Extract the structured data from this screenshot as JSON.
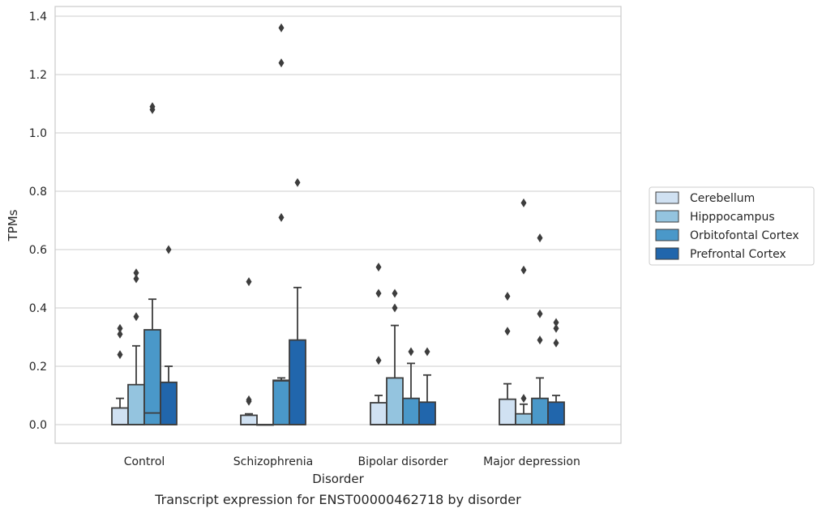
{
  "chart_data": {
    "type": "box",
    "xlabel": "Disorder",
    "ylabel": "TPMs",
    "caption": "Transcript expression for ENST00000462718 by disorder",
    "ylim": [
      -0.065,
      1.43
    ],
    "yticks": [
      0.0,
      0.2,
      0.4,
      0.6,
      0.8,
      1.0,
      1.2,
      1.4
    ],
    "ytick_labels": [
      "0.0",
      "0.2",
      "0.4",
      "0.6",
      "0.8",
      "1.0",
      "1.2",
      "1.4"
    ],
    "grid": "y",
    "legend_placement": "outside-right",
    "categories": [
      "Control",
      "Schizophrenia",
      "Bipolar disorder",
      "Major depression"
    ],
    "series": [
      {
        "name": "Cerebellum",
        "color": "#d0e1f2",
        "boxes": [
          {
            "q1": 0.0,
            "median": 0.0,
            "q3": 0.057,
            "whisker_low": 0.0,
            "whisker_high": 0.09,
            "outliers": [
              0.24,
              0.31,
              0.33
            ]
          },
          {
            "q1": 0.0,
            "median": 0.0,
            "q3": 0.032,
            "whisker_low": 0.0,
            "whisker_high": 0.037,
            "outliers": [
              0.08,
              0.085,
              0.49
            ]
          },
          {
            "q1": 0.0,
            "median": 0.0,
            "q3": 0.075,
            "whisker_low": 0.0,
            "whisker_high": 0.1,
            "outliers": [
              0.22,
              0.45,
              0.54
            ]
          },
          {
            "q1": 0.0,
            "median": 0.0,
            "q3": 0.087,
            "whisker_low": 0.0,
            "whisker_high": 0.14,
            "outliers": [
              0.32,
              0.44
            ]
          }
        ]
      },
      {
        "name": "Hipppocampus",
        "color": "#94c4df",
        "boxes": [
          {
            "q1": 0.0,
            "median": 0.0,
            "q3": 0.137,
            "whisker_low": 0.0,
            "whisker_high": 0.27,
            "outliers": [
              0.37,
              0.5,
              0.52
            ]
          },
          {
            "q1": 0.0,
            "median": 0.0,
            "q3": 0.0,
            "whisker_low": 0.0,
            "whisker_high": 0.0,
            "outliers": []
          },
          {
            "q1": 0.0,
            "median": 0.0,
            "q3": 0.16,
            "whisker_low": 0.0,
            "whisker_high": 0.34,
            "outliers": [
              0.4,
              0.45
            ]
          },
          {
            "q1": 0.0,
            "median": 0.0,
            "q3": 0.037,
            "whisker_low": 0.0,
            "whisker_high": 0.07,
            "outliers": [
              0.09,
              0.53,
              0.76
            ]
          }
        ]
      },
      {
        "name": "Orbitofontal Cortex",
        "color": "#4a98c9",
        "boxes": [
          {
            "q1": 0.0,
            "median": 0.04,
            "q3": 0.325,
            "whisker_low": 0.0,
            "whisker_high": 0.43,
            "outliers": [
              1.08,
              1.09
            ]
          },
          {
            "q1": 0.0,
            "median": 0.15,
            "q3": 0.152,
            "whisker_low": 0.0,
            "whisker_high": 0.16,
            "outliers": [
              0.71,
              1.24,
              1.36
            ]
          },
          {
            "q1": 0.0,
            "median": 0.0,
            "q3": 0.09,
            "whisker_low": 0.0,
            "whisker_high": 0.21,
            "outliers": [
              0.25
            ]
          },
          {
            "q1": 0.0,
            "median": 0.0,
            "q3": 0.09,
            "whisker_low": 0.0,
            "whisker_high": 0.16,
            "outliers": [
              0.29,
              0.38,
              0.64
            ]
          }
        ]
      },
      {
        "name": "Prefrontal Cortex",
        "color": "#2166ac",
        "boxes": [
          {
            "q1": 0.0,
            "median": 0.0,
            "q3": 0.145,
            "whisker_low": 0.0,
            "whisker_high": 0.2,
            "outliers": [
              0.6
            ]
          },
          {
            "q1": 0.0,
            "median": 0.0,
            "q3": 0.29,
            "whisker_low": 0.0,
            "whisker_high": 0.47,
            "outliers": [
              0.83
            ]
          },
          {
            "q1": 0.0,
            "median": 0.0,
            "q3": 0.077,
            "whisker_low": 0.0,
            "whisker_high": 0.17,
            "outliers": [
              0.25
            ]
          },
          {
            "q1": 0.0,
            "median": 0.0,
            "q3": 0.077,
            "whisker_low": 0.0,
            "whisker_high": 0.1,
            "outliers": [
              0.28,
              0.33,
              0.35
            ]
          }
        ]
      }
    ]
  }
}
